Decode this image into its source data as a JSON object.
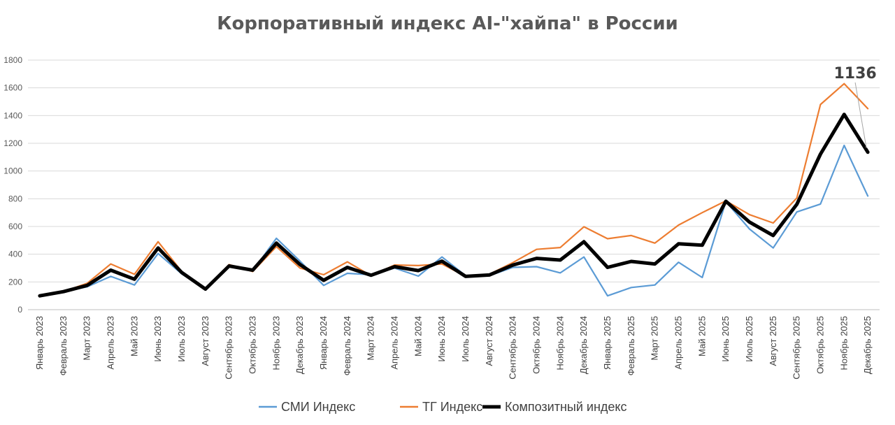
{
  "chart_data": {
    "type": "line",
    "title": "Корпоративный индекс AI-\"хайпа\" в России",
    "xlabel": "",
    "ylabel": "",
    "ylim": [
      0,
      1800
    ],
    "yticks": [
      0,
      200,
      400,
      600,
      800,
      1000,
      1200,
      1400,
      1600,
      1800
    ],
    "grid": true,
    "legend_position": "bottom",
    "categories": [
      "Январь 2023",
      "Февраль 2023",
      "Март 2023",
      "Апрель 2023",
      "Май 2023",
      "Июнь 2023",
      "Июль 2023",
      "Август 2023",
      "Сентябрь 2023",
      "Октябрь 2023",
      "Ноябрь 2023",
      "Декабрь 2023",
      "Январь 2024",
      "Февраль 2024",
      "Март 2024",
      "Апрель 2024",
      "Май 2024",
      "Июнь 2024",
      "Июль 2024",
      "Август 2024",
      "Сентябрь 2024",
      "Октябрь 2024",
      "Ноябрь 2024",
      "Декабрь 2024",
      "Январь 2025",
      "Февраль 2025",
      "Март 2025",
      "Апрель 2025",
      "Май 2025",
      "Июнь 2025",
      "Июль 2025",
      "Август 2025",
      "Сентябрь 2025",
      "Октябрь 2025",
      "Ноябрь 2025",
      "Декабрь 2025"
    ],
    "series": [
      {
        "name": "СМИ Индекс",
        "color": "#5b9bd5",
        "values": [
          100,
          130,
          165,
          240,
          178,
          405,
          258,
          148,
          318,
          280,
          515,
          350,
          175,
          262,
          252,
          300,
          242,
          380,
          245,
          245,
          305,
          310,
          265,
          380,
          100,
          160,
          178,
          342,
          232,
          780,
          582,
          445,
          705,
          762,
          1185,
          820
        ]
      },
      {
        "name": "ТГ Индекс",
        "color": "#ed7d31",
        "values": [
          100,
          130,
          190,
          330,
          255,
          490,
          275,
          148,
          325,
          275,
          455,
          300,
          252,
          345,
          245,
          322,
          318,
          330,
          240,
          255,
          340,
          435,
          448,
          598,
          512,
          535,
          480,
          610,
          700,
          785,
          685,
          625,
          805,
          1480,
          1630,
          1450
        ]
      },
      {
        "name": "Композитный индекс",
        "color": "#000000",
        "values": [
          100,
          130,
          175,
          285,
          220,
          445,
          268,
          148,
          315,
          285,
          480,
          325,
          212,
          305,
          248,
          310,
          282,
          350,
          240,
          250,
          322,
          370,
          358,
          490,
          305,
          348,
          330,
          475,
          465,
          782,
          632,
          535,
          760,
          1122,
          1408,
          1136
        ]
      }
    ],
    "annotations": [
      {
        "text": "1136",
        "x": "Декабрь 2025",
        "y": 1136
      }
    ]
  }
}
